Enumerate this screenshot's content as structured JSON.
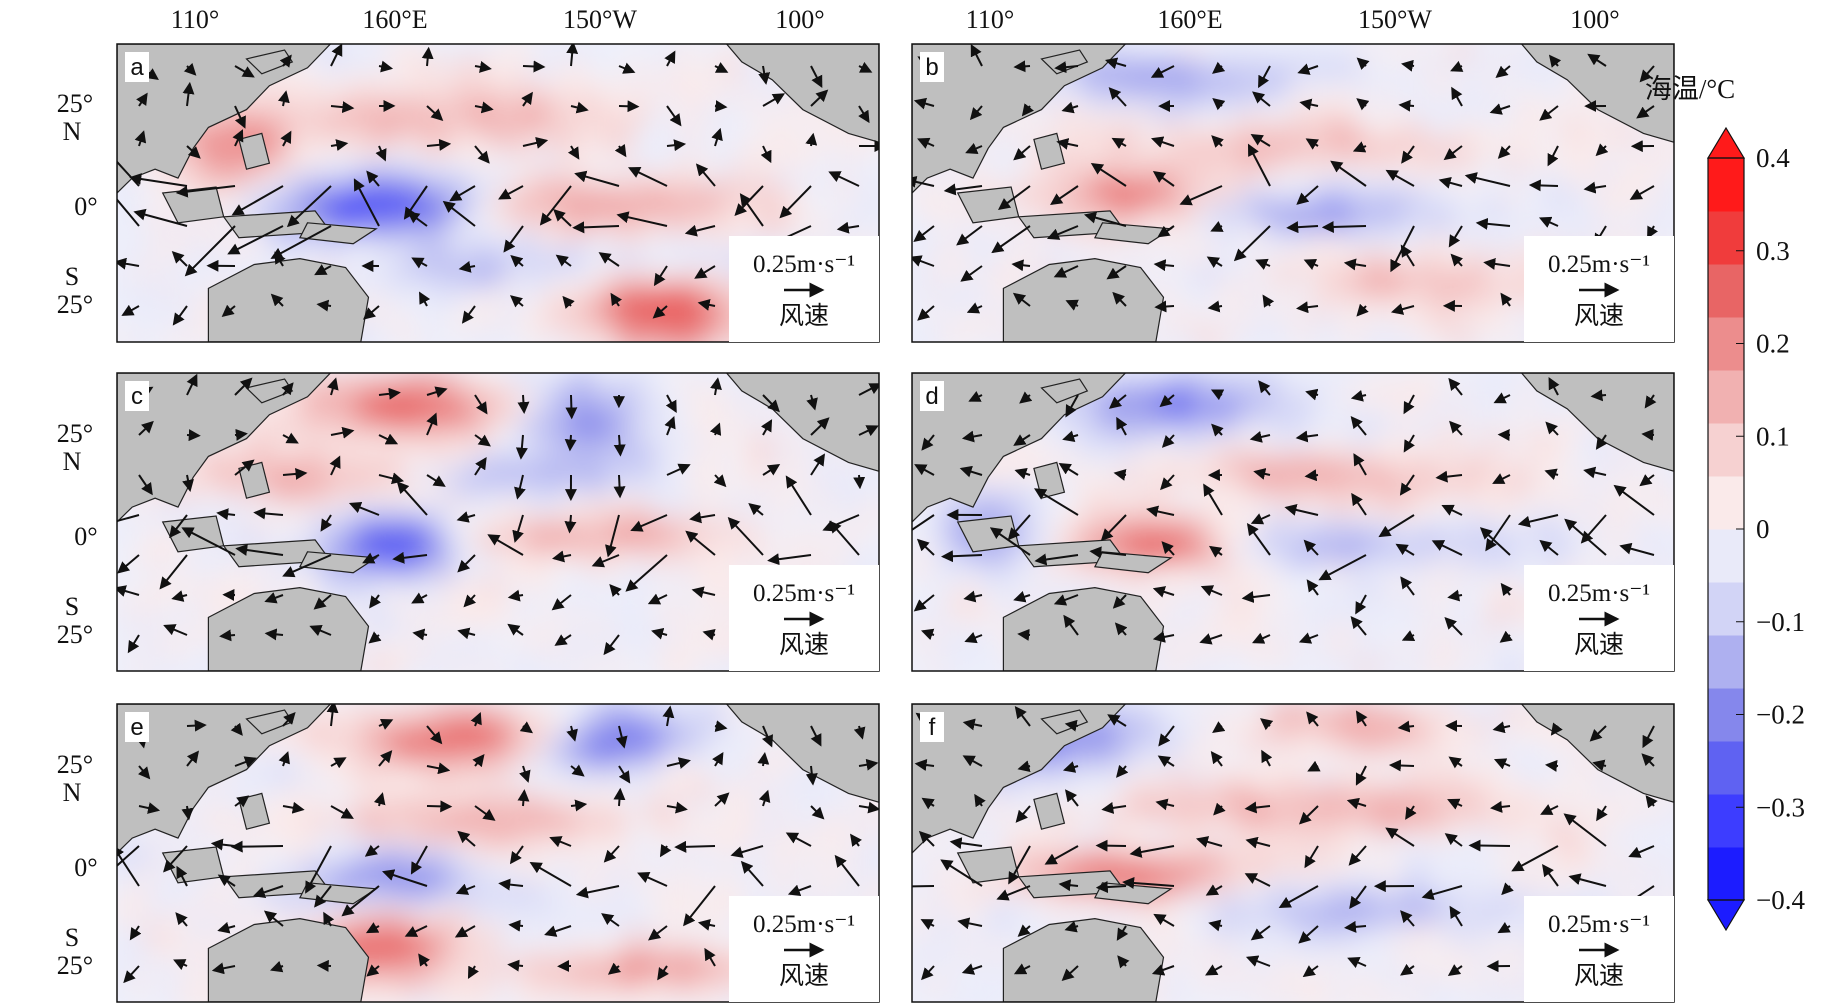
{
  "figure": {
    "lon_labels": [
      "110°",
      "160°E",
      "150°W",
      "100°"
    ],
    "lat_labels": [
      "25°\nN",
      "0°",
      "S\n25°"
    ],
    "panels": [
      {
        "letter": "a"
      },
      {
        "letter": "b"
      },
      {
        "letter": "c"
      },
      {
        "letter": "d"
      },
      {
        "letter": "e"
      },
      {
        "letter": "f"
      }
    ],
    "wind_scale": {
      "value_text": "0.25m·s⁻¹",
      "label": "风速"
    },
    "colorbar": {
      "title": "海温/°C",
      "ticks": [
        "0.4",
        "0.3",
        "0.2",
        "0.1",
        "0",
        "−0.1",
        "−0.2",
        "−0.3",
        "−0.4"
      ],
      "range": [
        -0.4,
        0.4
      ],
      "colors": {
        "neg": [
          "#1c1cff",
          "#3d3dff",
          "#5f62f2",
          "#8587ec",
          "#aeb0f0",
          "#d2d4f6",
          "#e9eaf9"
        ],
        "pos": [
          "#faeaea",
          "#f6d1d1",
          "#f1b1b1",
          "#ec8d8d",
          "#e86565",
          "#f03c3c",
          "#ff1a1a"
        ]
      }
    },
    "land_color": "#bfbfbf"
  }
}
